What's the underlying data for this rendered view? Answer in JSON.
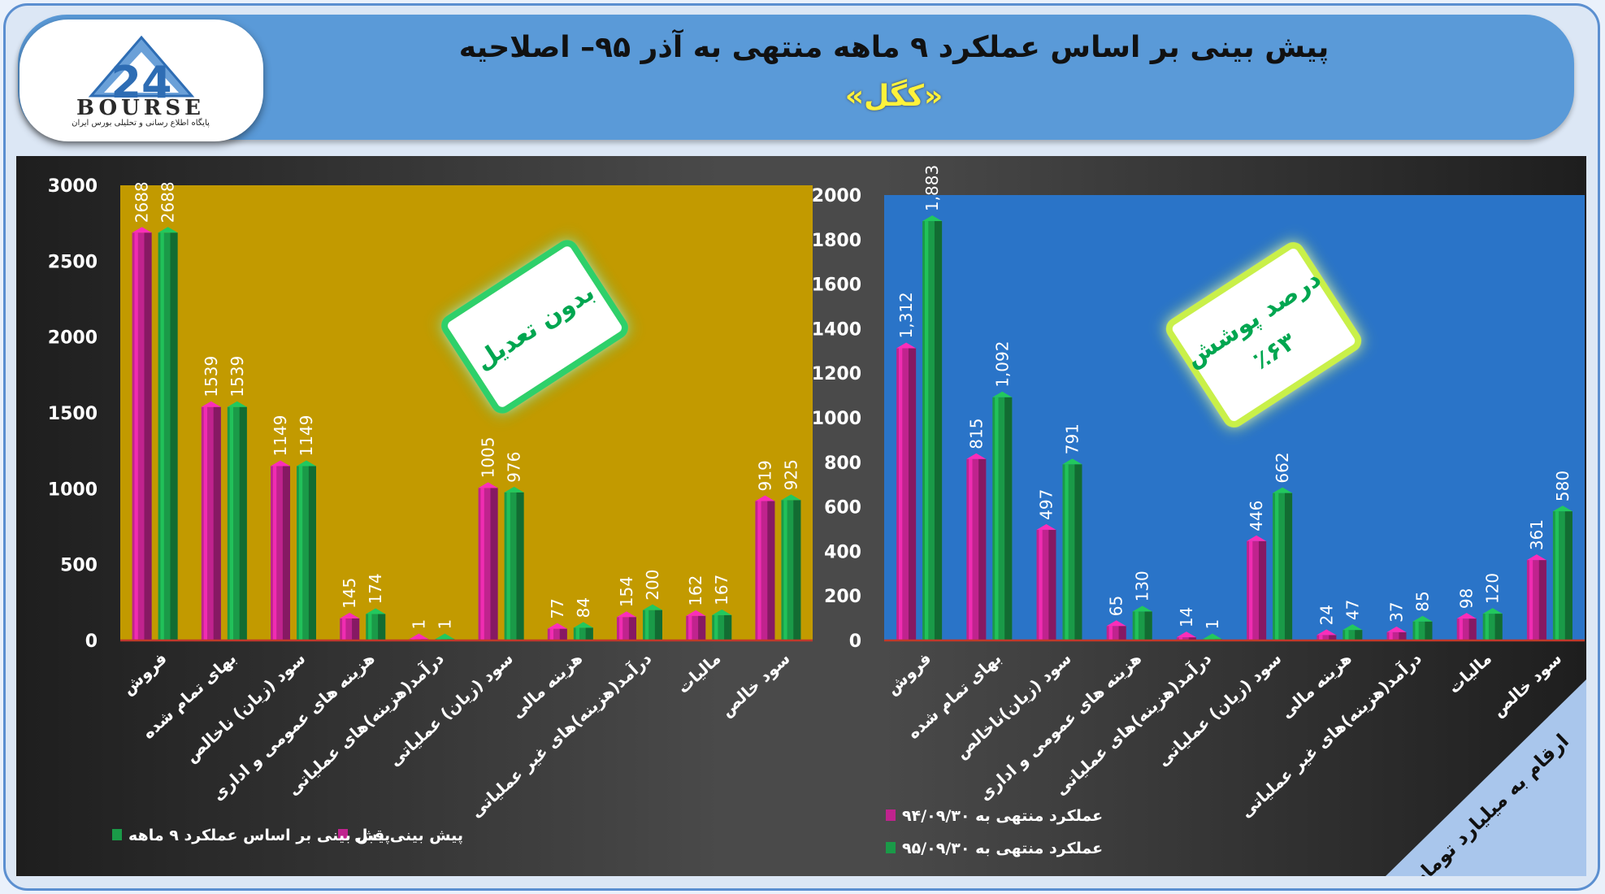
{
  "header": {
    "title": "پیش بینی بر اساس عملکرد ۹ ماهه منتهی به آذر ۹۵– اصلاحیه",
    "subtitle": "«کگل»",
    "logo_name": "BOURSE",
    "logo_number": "24",
    "logo_sub": "پایگاه اطلاع رسانی و تحلیلی بورس ایران"
  },
  "colors": {
    "magenta": "#c0238e",
    "green": "#1a9a48",
    "left_plot_bg": "#c29a00",
    "right_plot_bg": "#2a74c8",
    "badge_green": "#00a650"
  },
  "chart_data": [
    {
      "type": "bar",
      "categories": [
        "فروش",
        "بهای تمام شده",
        "سود (زیان) ناخالص",
        "هزینه های عمومی و اداری",
        "درآمد(هزینه)های عملیاتی",
        "سود (زیان) عملیاتی",
        "هزینه مالی",
        "درآمد(هزینه)های غیر عملیاتی",
        "مالیات",
        "سود خالص"
      ],
      "series": [
        {
          "name": "پیش بینی قبل",
          "values": [
            2688,
            1539,
            1149,
            145,
            1,
            1005,
            77,
            154,
            162,
            919
          ]
        },
        {
          "name": "پیش بینی بر اساس عملکرد ۹ ماهه",
          "values": [
            2688,
            1539,
            1149,
            174,
            1,
            976,
            84,
            200,
            167,
            925
          ]
        }
      ],
      "value_labels": [
        [
          "2688",
          "1539",
          "1149",
          "145",
          "1",
          "1005",
          "77",
          "154",
          "162",
          "919"
        ],
        [
          "2688",
          "1539",
          "1149",
          "174",
          "1",
          "976",
          "84",
          "200",
          "167",
          "925"
        ]
      ],
      "yticks": [
        "0",
        "500",
        "1000",
        "1500",
        "2000",
        "2500",
        "3000"
      ],
      "ylim": [
        0,
        3000
      ],
      "badge": [
        "بدون تعدیل"
      ],
      "legend_position": "bottom"
    },
    {
      "type": "bar",
      "categories": [
        "فروش",
        "بهای تمام شده",
        "سود (زیان)ناخالص",
        "هزینه های عمومی و اداری",
        "درآمد(هزینه)های عملیاتی",
        "سود (زیان) عملیاتی",
        "هزینه مالی",
        "درآمد(هزینه)های غیر عملیاتی",
        "مالیات",
        "سود خالص"
      ],
      "series": [
        {
          "name": "عملکرد منتهی به ۹۴/۰۹/۳۰",
          "values": [
            1312,
            815,
            497,
            65,
            14,
            446,
            24,
            37,
            98,
            361
          ]
        },
        {
          "name": "عملکرد منتهی به ۹۵/۰۹/۳۰",
          "values": [
            1883,
            1092,
            791,
            130,
            1,
            662,
            47,
            85,
            120,
            580
          ]
        }
      ],
      "value_labels": [
        [
          "1,312",
          "815",
          "497",
          "65",
          "14",
          "446",
          "24",
          "37",
          "98",
          "361"
        ],
        [
          "1,883",
          "1,092",
          "791",
          "130",
          "1",
          "662",
          "47",
          "85",
          "120",
          "580"
        ]
      ],
      "yticks": [
        "0",
        "200",
        "400",
        "600",
        "800",
        "1000",
        "1200",
        "1400",
        "1600",
        "1800",
        "2000"
      ],
      "ylim": [
        0,
        2000
      ],
      "badge": [
        "درصد پوشش",
        "٪۶۳"
      ],
      "legend_position": "bottom-left"
    }
  ],
  "unit_note": "ارقام به میلیارد تومان"
}
